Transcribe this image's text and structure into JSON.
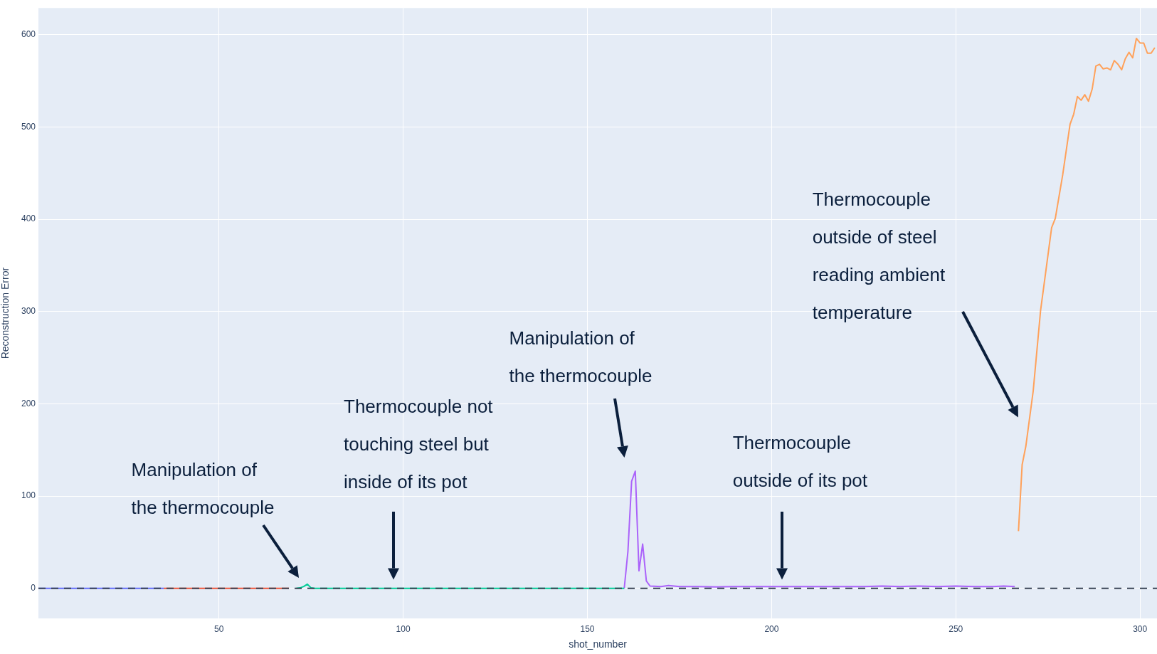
{
  "chart_data": {
    "type": "line",
    "xlabel": "shot_number",
    "ylabel": "Reconstruction Error",
    "xlim": [
      1,
      304.6
    ],
    "ylim": [
      -32.6,
      629
    ],
    "xticks": [
      50,
      100,
      150,
      200,
      250,
      300
    ],
    "yticks": [
      0,
      100,
      200,
      300,
      400,
      500,
      600
    ],
    "grid": true,
    "legend": false,
    "marker": "none",
    "line_style": "solid",
    "series": [
      {
        "color": "#636efa",
        "x": [
          1,
          35
        ],
        "values": [
          0,
          0
        ]
      },
      {
        "color": "#ef553b",
        "x": [
          35,
          69
        ],
        "values": [
          0,
          0
        ]
      },
      {
        "color": "#00cc96",
        "x": [
          71,
          72,
          73,
          74,
          75,
          76,
          160
        ],
        "values": [
          0,
          0.5,
          2,
          4.5,
          0.5,
          0,
          0
        ]
      },
      {
        "color": "#ab63fa",
        "x": [
          160,
          161,
          162,
          163,
          164,
          165,
          166,
          167,
          170,
          172,
          175,
          180,
          185,
          190,
          195,
          200,
          205,
          210,
          215,
          220,
          225,
          230,
          235,
          240,
          245,
          250,
          255,
          260,
          263,
          266
        ],
        "values": [
          0,
          40,
          116,
          127,
          19,
          48,
          8,
          2.5,
          2,
          3,
          2,
          2,
          1.5,
          2,
          2,
          2,
          2,
          2,
          2,
          2,
          2,
          2.5,
          2,
          2.5,
          2,
          2.5,
          2,
          2,
          2.5,
          2
        ]
      },
      {
        "color": "#ffa15a",
        "x": [
          267,
          268,
          269,
          271,
          273,
          274,
          276,
          277,
          279,
          281,
          282,
          283,
          284,
          285,
          286,
          287,
          288,
          289,
          290,
          291,
          292,
          293,
          294,
          295,
          296,
          297,
          298,
          299,
          300,
          301,
          302,
          303,
          304
        ],
        "values": [
          62,
          134,
          154,
          214,
          301,
          331,
          391,
          401,
          448,
          503,
          514,
          533,
          529,
          535,
          528,
          541,
          566,
          568,
          563,
          564,
          562,
          572,
          568,
          562,
          574,
          581,
          575,
          596,
          591,
          591,
          580,
          580,
          586
        ]
      }
    ],
    "ref_lines": [
      {
        "axis": "y",
        "value": 0,
        "color": "#3b4556",
        "line_style": "dashed"
      }
    ],
    "annotations": [
      "Manipulation of\nthe thermocouple",
      "Thermocouple not\ntouching steel but\ninside of its pot",
      "Manipulation of\nthe thermocouple",
      "Thermocouple\noutside of its pot",
      "Thermocouple\noutside of steel\nreading ambient\ntemperature"
    ]
  }
}
